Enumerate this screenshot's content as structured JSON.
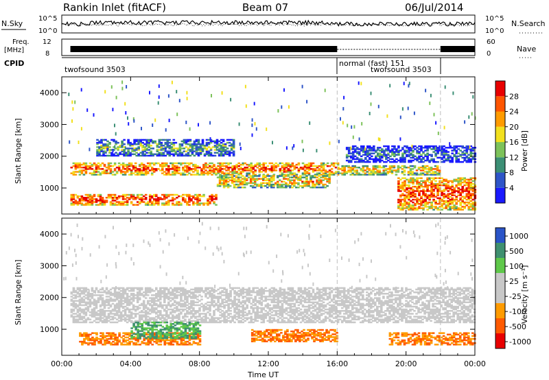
{
  "header": {
    "station": "Rankin Inlet (fitACF)",
    "beam": "Beam 07",
    "date": "06/Jul/2014"
  },
  "top_panels": {
    "nsky_label": "N.Sky",
    "nsky_ticks": [
      "10^5",
      "10^0"
    ],
    "nsearch_label": "N.Search",
    "nsearch_ticks": [
      "10^5",
      "10^0"
    ],
    "freq_label_1": "Freq.",
    "freq_label_2": "[MHz]",
    "freq_ticks": [
      "12",
      "8"
    ],
    "nave_label": "Nave",
    "nave_ticks": [
      "60",
      "0"
    ],
    "cpid_label": "CPID",
    "cpid_modes": [
      {
        "label": "twofsound 3503"
      },
      {
        "label": "normal (fast) 151"
      },
      {
        "label": "twofsound 3503"
      }
    ]
  },
  "chart_data": [
    {
      "type": "heatmap",
      "name": "power",
      "ylabel": "Slant Range [km]",
      "xlabel": "",
      "xlim": [
        0,
        24
      ],
      "ylim": [
        180,
        4500
      ],
      "x_ticks": [
        "00:00",
        "04:00",
        "08:00",
        "12:00",
        "16:00",
        "20:00",
        "00:00"
      ],
      "y_ticks": [
        1000,
        2000,
        3000,
        4000
      ],
      "colorbar_label": "Power [dB]",
      "colorbar_ticks": [
        "4",
        "8",
        "12",
        "16",
        "20",
        "24",
        "28"
      ],
      "colorscale": [
        "#1a1aff",
        "#2e55c8",
        "#3c8f75",
        "#7dc25a",
        "#f2e01e",
        "#ff9b00",
        "#ff5500",
        "#e80000"
      ],
      "mode_change_times": [
        16,
        22
      ],
      "bands": [
        {
          "t0": 0.5,
          "t1": 16,
          "r0": 1400,
          "r1": 1800,
          "level": 0.85
        },
        {
          "t0": 0.5,
          "t1": 9,
          "r0": 450,
          "r1": 800,
          "level": 0.9
        },
        {
          "t0": 9,
          "t1": 15.5,
          "r0": 1000,
          "r1": 1400,
          "level": 0.7
        },
        {
          "t0": 16,
          "t1": 22,
          "r0": 1400,
          "r1": 1700,
          "level": 0.7
        },
        {
          "t0": 19.5,
          "t1": 24,
          "r0": 300,
          "r1": 1300,
          "level": 0.9
        },
        {
          "t0": 2,
          "t1": 10,
          "r0": 2000,
          "r1": 2500,
          "level": 0.45
        },
        {
          "t0": 16.5,
          "t1": 24,
          "r0": 1800,
          "r1": 2300,
          "level": 0.3
        }
      ]
    },
    {
      "type": "heatmap",
      "name": "velocity",
      "ylabel": "Slant Range [km]",
      "xlabel": "Time UT",
      "xlim": [
        0,
        24
      ],
      "ylim": [
        180,
        4500
      ],
      "x_ticks": [
        "00:00",
        "04:00",
        "08:00",
        "12:00",
        "16:00",
        "20:00",
        "00:00"
      ],
      "y_ticks": [
        1000,
        2000,
        3000,
        4000
      ],
      "colorbar_label": "Velocity [m s⁻¹]",
      "colorbar_ticks": [
        "1000",
        "500",
        "100",
        "25",
        "-25",
        "-100",
        "-500",
        "-1000"
      ],
      "colorscale": [
        "#2a54c8",
        "#3f9070",
        "#5fc84a",
        "#c8c8c8",
        "#c8c8c8",
        "#ff9b00",
        "#ff5a00",
        "#e80000"
      ],
      "mode_change_times": [
        16,
        22
      ],
      "bands": [
        {
          "t0": 0.5,
          "t1": 24,
          "r0": 1200,
          "r1": 2300,
          "level": 0.5
        },
        {
          "t0": 1,
          "t1": 8,
          "r0": 500,
          "r1": 900,
          "level": 0.2
        },
        {
          "t0": 4,
          "t1": 8,
          "r0": 700,
          "r1": 1200,
          "level": 0.85
        },
        {
          "t0": 11,
          "t1": 16,
          "r0": 600,
          "r1": 1000,
          "level": 0.2
        },
        {
          "t0": 19,
          "t1": 24,
          "r0": 500,
          "r1": 900,
          "level": 0.15
        }
      ]
    }
  ]
}
